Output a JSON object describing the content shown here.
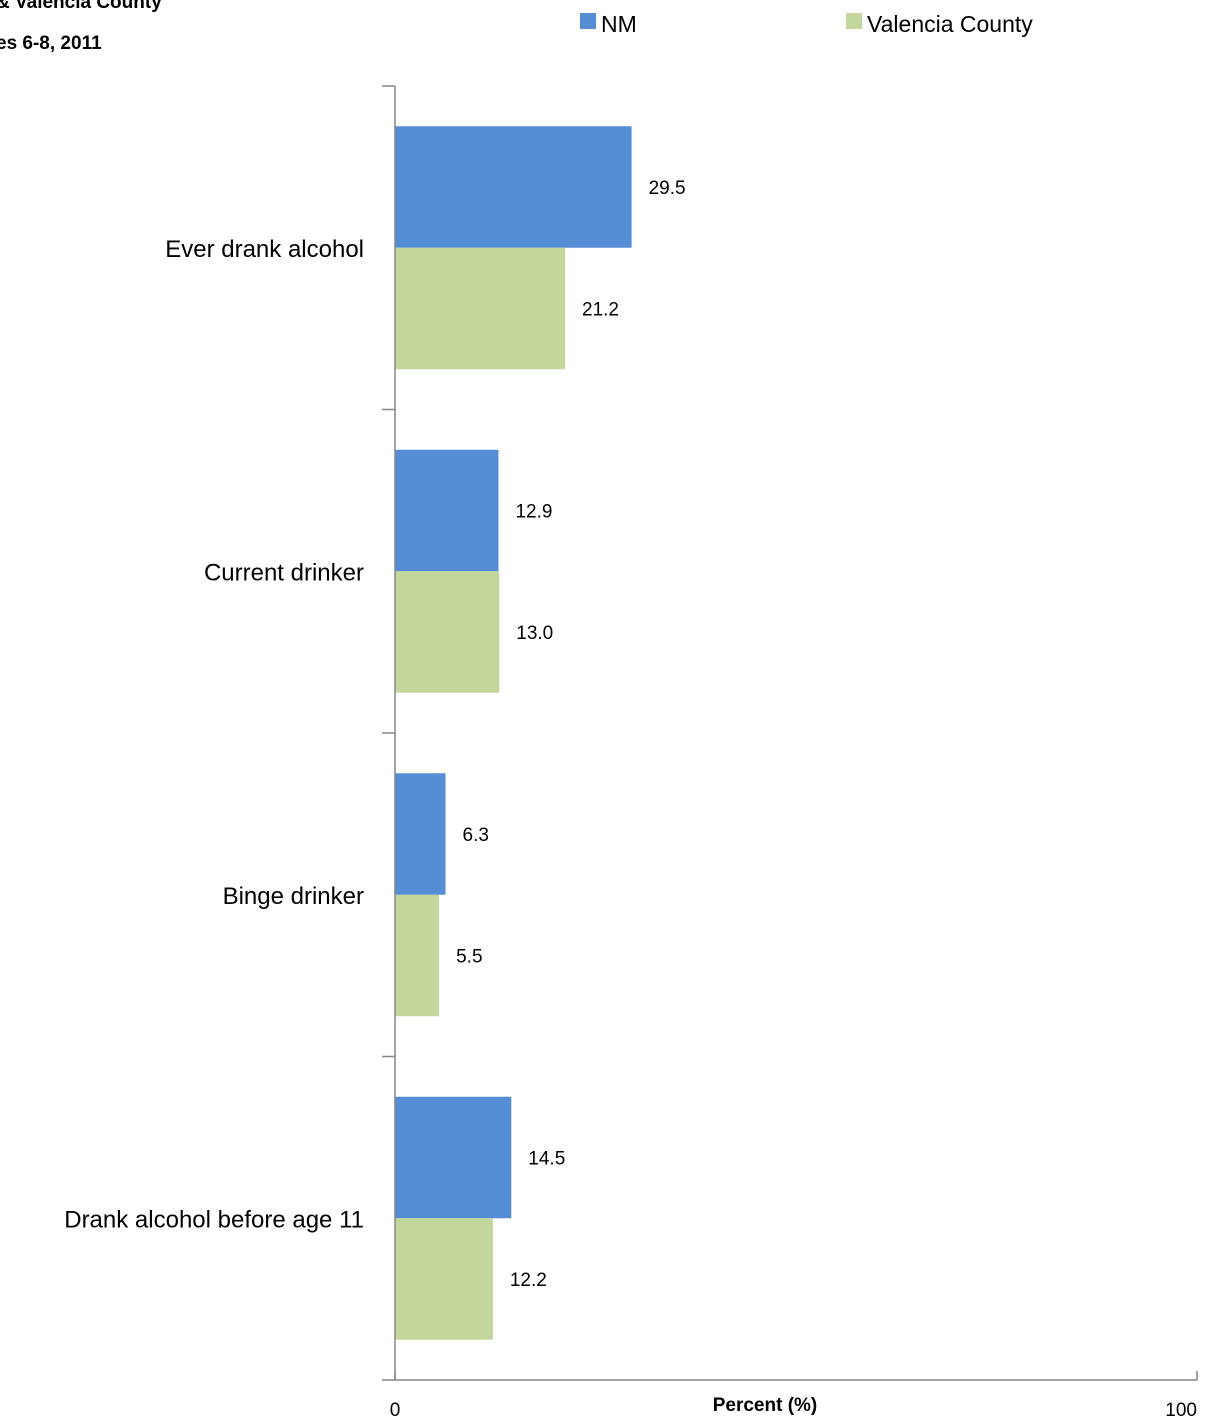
{
  "chart_data": {
    "type": "bar",
    "orientation": "horizontal",
    "title_lines": [
      "& Valencia County",
      "es 6-8, 2011"
    ],
    "xlabel": "Percent (%)",
    "ylabel": "",
    "xlim": [
      0,
      100
    ],
    "x_ticks": [
      "0",
      "100"
    ],
    "grid": false,
    "legend_position": "top",
    "categories": [
      "Ever drank alcohol",
      "Current drinker",
      "Binge drinker",
      "Drank alcohol before age 11"
    ],
    "series": [
      {
        "name": "NM",
        "color": "#558ED5",
        "values": [
          29.5,
          12.9,
          6.3,
          14.5
        ],
        "labels": [
          "29.5",
          "12.9",
          "6.3",
          "14.5"
        ]
      },
      {
        "name": "Valencia County",
        "color": "#C3D69B",
        "values": [
          21.2,
          13.0,
          5.5,
          12.2
        ],
        "labels": [
          "21.2",
          "13.0",
          "5.5",
          "12.2"
        ]
      }
    ]
  }
}
